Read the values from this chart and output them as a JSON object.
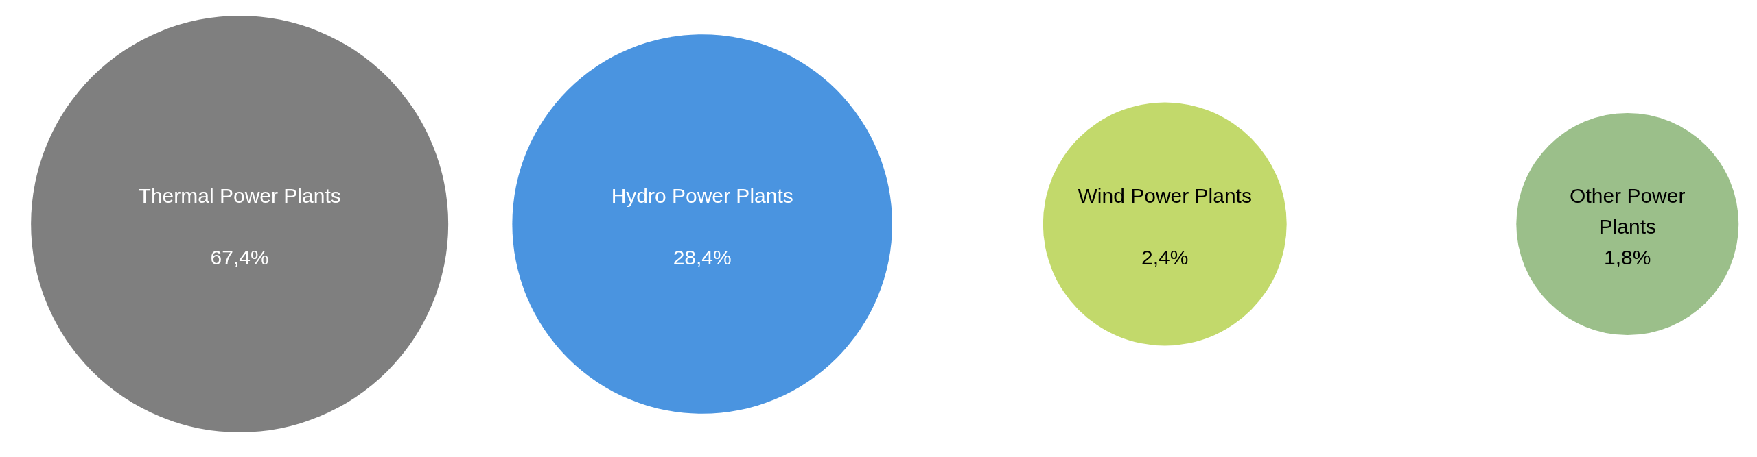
{
  "chart_data": {
    "type": "other",
    "categories": [
      "Thermal Power Plants",
      "Hydro Power Plants",
      "Wind Power Plants",
      "Other Power Plants"
    ],
    "values": [
      67.4,
      28.4,
      2.4,
      1.8
    ],
    "value_labels": [
      "67,4%",
      "28,4%",
      "2,4%",
      "1,8%"
    ],
    "colors": [
      "#7f7f7f",
      "#4a94e0",
      "#c2d96b",
      "#9bbf8a"
    ]
  }
}
